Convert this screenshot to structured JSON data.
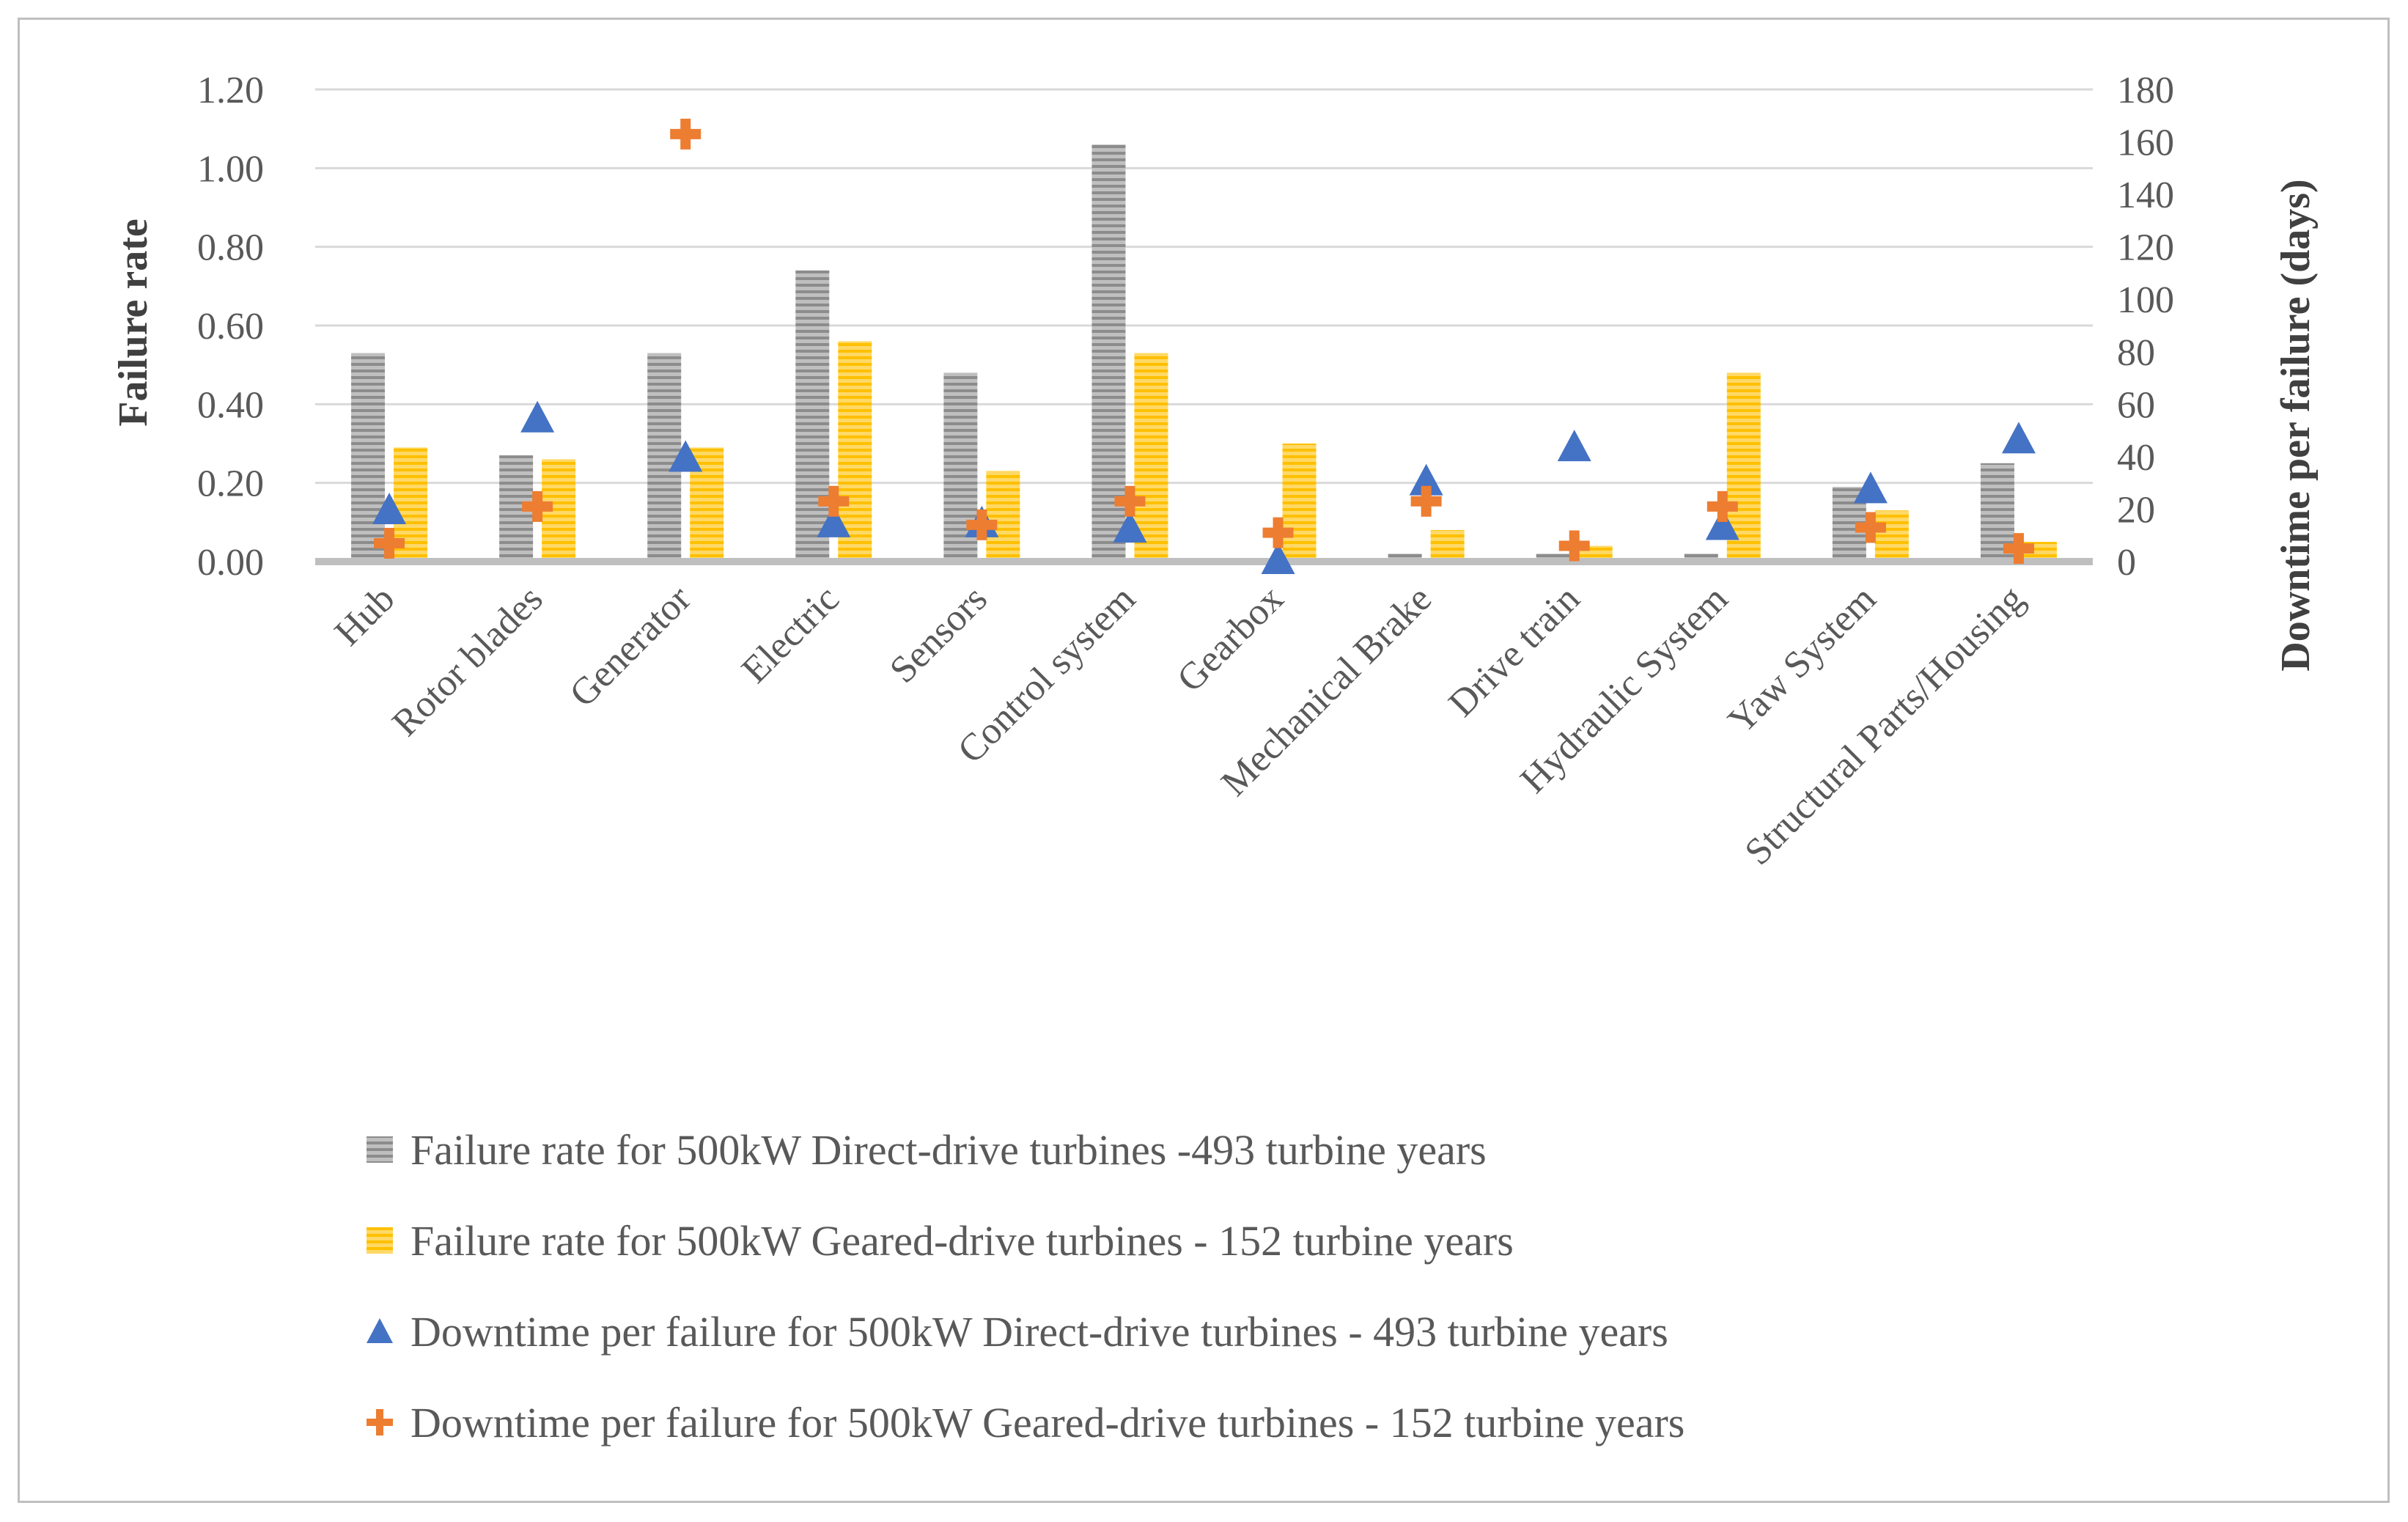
{
  "chart_data": {
    "type": "bar",
    "title": "",
    "categories": [
      "Hub",
      "Rotor blades",
      "Generator",
      "Electric",
      "Sensors",
      "Control system",
      "Gearbox",
      "Mechanical Brake",
      "Drive train",
      "Hydraulic System",
      "Yaw System",
      "Structural Parts/Housing"
    ],
    "ylabel": "Failure rate",
    "y2label": "Downtime per failure (days)",
    "ylim": [
      0,
      1.2
    ],
    "y2lim": [
      0,
      180
    ],
    "yticks": [
      "0.00",
      "0.20",
      "0.40",
      "0.60",
      "0.80",
      "1.00",
      "1.20"
    ],
    "y2ticks": [
      "0",
      "20",
      "40",
      "60",
      "80",
      "100",
      "120",
      "140",
      "160",
      "180"
    ],
    "grid": true,
    "legend_position": "bottom",
    "series": [
      {
        "name": "Failure rate for 500kW Direct-drive turbines -493 turbine years",
        "kind": "bar",
        "axis": "left",
        "color": "#a6a6a6",
        "values": [
          0.53,
          0.27,
          0.53,
          0.74,
          0.48,
          1.06,
          0.0,
          0.02,
          0.02,
          0.02,
          0.19,
          0.25
        ]
      },
      {
        "name": "Failure rate for 500kW Geared-drive turbines - 152 turbine years",
        "kind": "bar",
        "axis": "left",
        "color": "#ffc000",
        "values": [
          0.29,
          0.26,
          0.29,
          0.56,
          0.23,
          0.53,
          0.3,
          0.08,
          0.04,
          0.48,
          0.13,
          0.05
        ]
      },
      {
        "name": "Downtime per failure for 500kW Direct-drive turbines - 493 turbine years",
        "kind": "triangle",
        "axis": "right",
        "color": "#4472c4",
        "values": [
          19,
          54,
          39,
          14,
          14,
          12,
          0,
          30,
          43,
          13,
          27,
          46
        ]
      },
      {
        "name": "Downtime per failure for 500kW Geared-drive turbines - 152 turbine years",
        "kind": "plus",
        "axis": "right",
        "color": "#ed7d31",
        "values": [
          7,
          21,
          163,
          23,
          14,
          23,
          11,
          23,
          6,
          21,
          13,
          5
        ]
      }
    ]
  }
}
